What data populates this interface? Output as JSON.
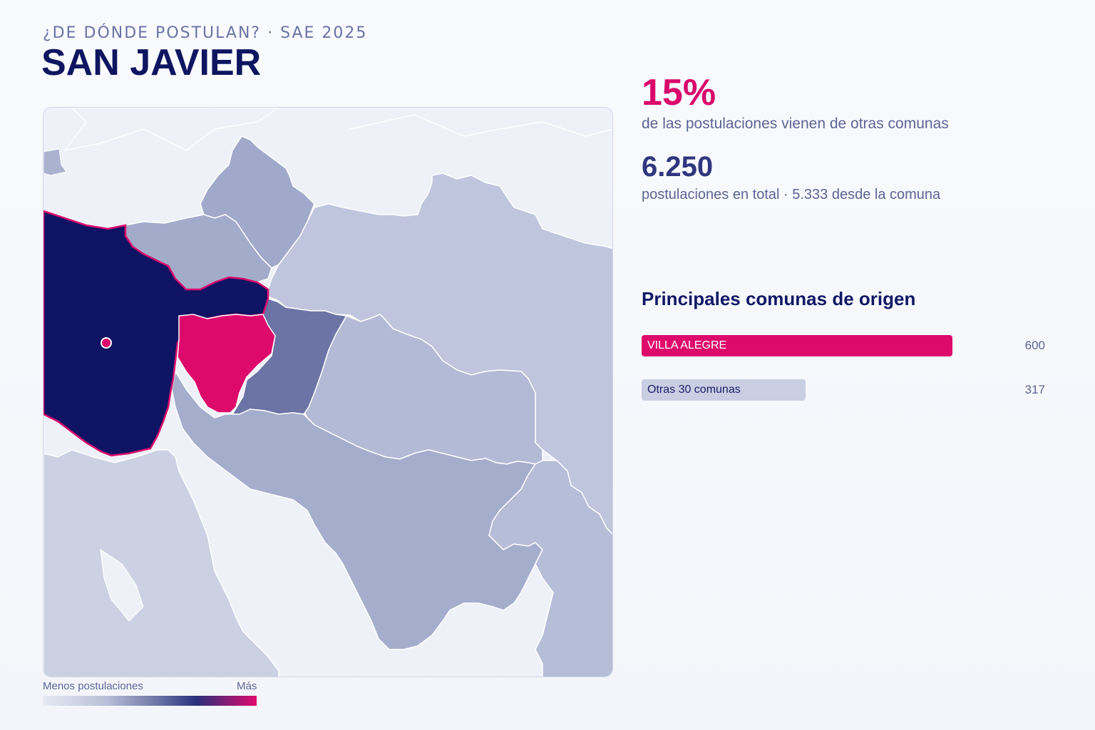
{
  "header": {
    "kicker": "¿DE DÓNDE POSTULAN? · SAE 2025",
    "title": "SAN JAVIER"
  },
  "stats": {
    "percent": "15%",
    "percent_desc": "de las postulaciones vienen de otras comunas",
    "total": "6.250",
    "total_desc": "postulaciones en total · 5.333 desde la comuna"
  },
  "origins": {
    "title": "Principales comunas de origen",
    "items": [
      {
        "label": "VILLA ALEGRE",
        "value": 600,
        "value_text": "600",
        "color": "#dd0a6c",
        "text_color": "#ffffff"
      },
      {
        "label": "Otras 30 comunas",
        "value": 317,
        "value_text": "317",
        "color": "#c9cee2",
        "text_color": "#1b2069"
      }
    ]
  },
  "legend": {
    "low": "Menos postulaciones",
    "high": "Más"
  },
  "map": {
    "selected_commune_color": "#0f1363",
    "top_origin_color": "#dd0a6c",
    "outline_color": "#ffffff"
  }
}
